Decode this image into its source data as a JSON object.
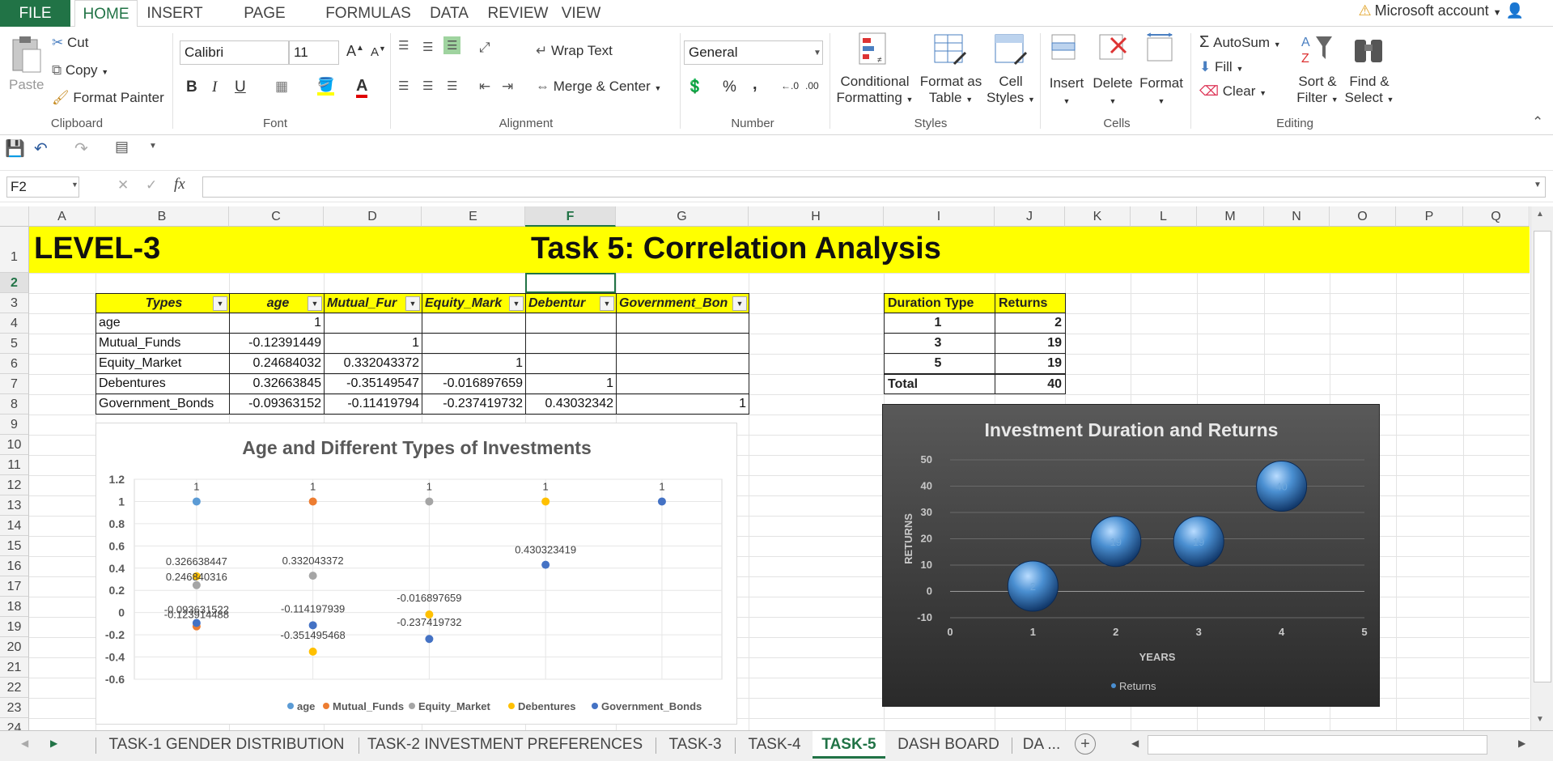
{
  "ribbon_tabs": {
    "file": "FILE",
    "home": "HOME",
    "insert": "INSERT",
    "page_layout": "PAGE LAYOUT",
    "formulas": "FORMULAS",
    "data": "DATA",
    "review": "REVIEW",
    "view": "VIEW"
  },
  "account": "Microsoft account",
  "clipboard": {
    "paste": "Paste",
    "cut": "Cut",
    "copy": "Copy",
    "format_painter": "Format Painter",
    "label": "Clipboard"
  },
  "font": {
    "name": "Calibri",
    "size": "11",
    "bold": "B",
    "italic": "I",
    "underline": "U",
    "label": "Font"
  },
  "alignment": {
    "wrap": "Wrap Text",
    "merge": "Merge & Center",
    "label": "Alignment"
  },
  "number": {
    "format": "General",
    "percent": "%",
    "comma": ",",
    "label": "Number"
  },
  "styles": {
    "cond1": "Conditional",
    "cond2": "Formatting",
    "fmt1": "Format as",
    "fmt2": "Table",
    "cell1": "Cell",
    "cell2": "Styles",
    "label": "Styles"
  },
  "cells": {
    "insert": "Insert",
    "delete": "Delete",
    "format": "Format",
    "label": "Cells"
  },
  "editing": {
    "autosum": "AutoSum",
    "fill": "Fill",
    "clear": "Clear",
    "sort1": "Sort &",
    "sort2": "Filter",
    "find1": "Find &",
    "find2": "Select",
    "label": "Editing"
  },
  "name_box": "F2",
  "columns": [
    "A",
    "B",
    "C",
    "D",
    "E",
    "F",
    "G",
    "H",
    "I",
    "J",
    "K",
    "L",
    "M",
    "N",
    "O",
    "P",
    "Q"
  ],
  "rows": [
    "1",
    "2",
    "3",
    "4",
    "5",
    "6",
    "7",
    "8",
    "9",
    "10",
    "11",
    "12",
    "13",
    "14",
    "15",
    "16",
    "17",
    "18",
    "19",
    "20",
    "21",
    "22",
    "23",
    "24"
  ],
  "banner": {
    "level": "LEVEL-3",
    "title": "Task 5: Correlation Analysis"
  },
  "corr_table": {
    "headers": [
      "Types",
      "age",
      "Mutual_Fur",
      "Equity_Mark",
      "Debentur",
      "Government_Bon"
    ],
    "rows": [
      [
        "age",
        "1",
        "",
        "",
        "",
        ""
      ],
      [
        "Mutual_Funds",
        "-0.12391449",
        "1",
        "",
        "",
        ""
      ],
      [
        "Equity_Market",
        "0.24684032",
        "0.332043372",
        "1",
        "",
        ""
      ],
      [
        "Debentures",
        "0.32663845",
        "-0.35149547",
        "-0.016897659",
        "1",
        ""
      ],
      [
        "Government_Bonds",
        "-0.09363152",
        "-0.11419794",
        "-0.237419732",
        "0.43032342",
        "1"
      ]
    ]
  },
  "duration_table": {
    "headers": [
      "Duration Type",
      "Returns"
    ],
    "rows": [
      [
        "1",
        "2"
      ],
      [
        "3",
        "19"
      ],
      [
        "5",
        "19"
      ]
    ],
    "total": [
      "Total",
      "40"
    ]
  },
  "chart_data": [
    {
      "type": "scatter",
      "title": "Age and Different Types of Investments",
      "ylim": [
        -0.6,
        1.2
      ],
      "yticks": [
        "1.2",
        "1",
        "0.8",
        "0.6",
        "0.4",
        "0.2",
        "0",
        "-0.2",
        "-0.4",
        "-0.6"
      ],
      "x": [
        1,
        2,
        3,
        4,
        5
      ],
      "series": [
        {
          "name": "age",
          "color": "#5b9bd5",
          "values": [
            1,
            null,
            null,
            null,
            null
          ]
        },
        {
          "name": "Mutual_Funds",
          "color": "#ed7d31",
          "values": [
            -0.12391449,
            1,
            null,
            null,
            null
          ]
        },
        {
          "name": "Equity_Market",
          "color": "#a5a5a5",
          "values": [
            0.246840316,
            0.332043372,
            1,
            null,
            null
          ]
        },
        {
          "name": "Debentures",
          "color": "#ffc000",
          "values": [
            0.326638447,
            -0.351495468,
            -0.016897659,
            1,
            null
          ]
        },
        {
          "name": "Government_Bonds",
          "color": "#4472c4",
          "values": [
            -0.093631522,
            -0.114197939,
            -0.237419732,
            0.430323419,
            1
          ]
        }
      ],
      "data_labels": [
        {
          "x": 1,
          "y": 1,
          "text": "1"
        },
        {
          "x": 2,
          "y": 1,
          "text": "1"
        },
        {
          "x": 3,
          "y": 1,
          "text": "1"
        },
        {
          "x": 4,
          "y": 1,
          "text": "1"
        },
        {
          "x": 5,
          "y": 1,
          "text": "1"
        },
        {
          "x": 1,
          "y": 0.326638447,
          "text": "0.326638447"
        },
        {
          "x": 1,
          "y": 0.246840316,
          "text": "0.246840316"
        },
        {
          "x": 1,
          "y": -0.093631522,
          "text": "-0.093631522"
        },
        {
          "x": 1,
          "y": -0.12391449,
          "text": "-0.123914488"
        },
        {
          "x": 2,
          "y": 0.332043372,
          "text": "0.332043372"
        },
        {
          "x": 2,
          "y": -0.114197939,
          "text": "-0.114197939"
        },
        {
          "x": 2,
          "y": -0.351495468,
          "text": "-0.351495468"
        },
        {
          "x": 3,
          "y": -0.016897659,
          "text": "-0.016897659"
        },
        {
          "x": 3,
          "y": -0.237419732,
          "text": "-0.237419732"
        },
        {
          "x": 4,
          "y": 0.430323419,
          "text": "0.430323419"
        }
      ],
      "legend": "bottom"
    },
    {
      "type": "bubble",
      "title": "Investment Duration and Returns",
      "xlabel": "YEARS",
      "ylabel": "RETURNS",
      "xlim": [
        0,
        5
      ],
      "ylim": [
        -10,
        50
      ],
      "xticks": [
        "0",
        "1",
        "2",
        "3",
        "4",
        "5"
      ],
      "yticks": [
        "50",
        "40",
        "30",
        "20",
        "10",
        "0",
        "-10"
      ],
      "series": [
        {
          "name": "Returns",
          "color": "#4a8fd1",
          "points": [
            {
              "x": 1,
              "y": 2,
              "label": "2"
            },
            {
              "x": 2,
              "y": 19,
              "label": "19"
            },
            {
              "x": 3,
              "y": 19,
              "label": "19"
            },
            {
              "x": 4,
              "y": 40,
              "label": "40"
            }
          ]
        }
      ],
      "legend": "bottom"
    }
  ],
  "sheet_tabs": [
    "TASK-1 GENDER DISTRIBUTION",
    "TASK-2 INVESTMENT PREFERENCES",
    "TASK-3",
    "TASK-4",
    "TASK-5",
    "DASH BOARD",
    "DA ..."
  ]
}
